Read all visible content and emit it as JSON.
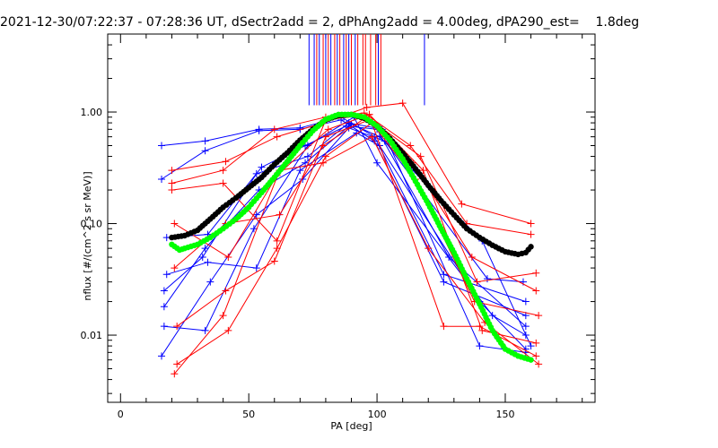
{
  "chart_data": {
    "type": "scatter",
    "title": "2021-12-30/07:22:37 - 07:28:36 UT, dSectr2add = 2, dPhAng2add = 4.00deg, dPA290_est=    1.8deg",
    "xlabel": "PA [deg]",
    "ylabel": "nflux [#/(cm^2 s sr MeV)]",
    "xlim": [
      -5,
      185
    ],
    "ylim": [
      0.0025,
      5.0
    ],
    "y_scale": "log",
    "x_ticks": [
      0,
      50,
      100,
      150
    ],
    "x_tick_labels": [
      "0",
      "50",
      "100",
      "150"
    ],
    "y_ticks": [
      0.01,
      0.1,
      1.0
    ],
    "y_tick_labels": [
      "0.01",
      "0.10",
      "1.00"
    ],
    "grid": false,
    "colors": {
      "axes": "#000000",
      "blue_sectors": "#0000ff",
      "red_sectors": "#ff0000",
      "fit_black": "#000000",
      "fit_green": "#00ff00"
    },
    "vertical_markers": {
      "blue_x": [
        73.5,
        75.5,
        77.5,
        80,
        82,
        84.5,
        87,
        89,
        91.5,
        100.5,
        118.5
      ],
      "red_x": [
        76.5,
        79,
        81,
        83.5,
        85.5,
        88,
        90,
        92.5,
        94.5,
        95.5,
        97.5,
        99.5,
        101.5
      ]
    },
    "series": [
      {
        "color": "blue",
        "x": [
          16,
          33,
          54,
          70,
          86,
          99,
          126,
          158
        ],
        "y": [
          0.5,
          0.55,
          0.7,
          0.72,
          0.9,
          0.6,
          0.035,
          0.02
        ]
      },
      {
        "color": "blue",
        "x": [
          16,
          33,
          54,
          70,
          86,
          99,
          126,
          158
        ],
        "y": [
          0.25,
          0.45,
          0.68,
          0.7,
          0.85,
          0.55,
          0.03,
          0.015
        ]
      },
      {
        "color": "blue",
        "x": [
          18,
          34,
          55,
          72,
          88,
          100,
          128,
          158
        ],
        "y": [
          0.075,
          0.08,
          0.32,
          0.5,
          0.75,
          0.7,
          0.05,
          0.012
        ]
      },
      {
        "color": "blue",
        "x": [
          17,
          32,
          53,
          73,
          89,
          102,
          140,
          158
        ],
        "y": [
          0.025,
          0.05,
          0.28,
          0.4,
          0.8,
          0.7,
          0.008,
          0.007
        ]
      },
      {
        "color": "blue",
        "x": [
          17,
          33,
          54,
          72,
          90,
          101,
          141,
          160
        ],
        "y": [
          0.018,
          0.06,
          0.2,
          0.35,
          0.78,
          0.6,
          0.07,
          0.008
        ]
      },
      {
        "color": "blue",
        "x": [
          16,
          35,
          53,
          71,
          89,
          103,
          143,
          157
        ],
        "y": [
          0.0065,
          0.03,
          0.12,
          0.25,
          0.72,
          0.55,
          0.032,
          0.03
        ]
      },
      {
        "color": "blue",
        "x": [
          17,
          33,
          52,
          73,
          91,
          100,
          145,
          158
        ],
        "y": [
          0.012,
          0.011,
          0.09,
          0.5,
          0.9,
          0.35,
          0.015,
          0.01
        ]
      },
      {
        "color": "blue",
        "x": [
          18,
          34,
          53,
          70,
          92,
          101,
          140,
          158
        ],
        "y": [
          0.035,
          0.045,
          0.04,
          0.3,
          0.65,
          0.5,
          0.02,
          0.0075
        ]
      },
      {
        "color": "red",
        "x": [
          20,
          41,
          61,
          79,
          96,
          110,
          133,
          160
        ],
        "y": [
          0.3,
          0.36,
          0.6,
          0.8,
          1.1,
          1.2,
          0.15,
          0.1
        ]
      },
      {
        "color": "red",
        "x": [
          20,
          40,
          60,
          80,
          95,
          113,
          135,
          160
        ],
        "y": [
          0.23,
          0.3,
          0.7,
          0.9,
          0.98,
          0.5,
          0.1,
          0.08
        ]
      },
      {
        "color": "red",
        "x": [
          21,
          42,
          61,
          81,
          97,
          114,
          137,
          162
        ],
        "y": [
          0.1,
          0.05,
          0.27,
          0.7,
          0.95,
          0.35,
          0.05,
          0.025
        ]
      },
      {
        "color": "red",
        "x": [
          21,
          41,
          62,
          79,
          96,
          117,
          139,
          162
        ],
        "y": [
          0.04,
          0.1,
          0.12,
          0.5,
          0.9,
          0.4,
          0.03,
          0.036
        ]
      },
      {
        "color": "red",
        "x": [
          22,
          41,
          60,
          80,
          97,
          115,
          138,
          163
        ],
        "y": [
          0.012,
          0.025,
          0.046,
          0.6,
          0.85,
          0.25,
          0.02,
          0.015
        ]
      },
      {
        "color": "red",
        "x": [
          22,
          42,
          61,
          80,
          98,
          126,
          140,
          162
        ],
        "y": [
          0.0055,
          0.011,
          0.06,
          0.4,
          0.8,
          0.012,
          0.012,
          0.0065
        ]
      },
      {
        "color": "red",
        "x": [
          21,
          40,
          62,
          79,
          98,
          120,
          142,
          163
        ],
        "y": [
          0.0045,
          0.015,
          0.3,
          0.35,
          0.6,
          0.06,
          0.013,
          0.0055
        ]
      },
      {
        "color": "red",
        "x": [
          20,
          40,
          61,
          80,
          97,
          118,
          141,
          162
        ],
        "y": [
          0.2,
          0.23,
          0.07,
          0.85,
          0.95,
          0.3,
          0.011,
          0.0085
        ]
      }
    ],
    "fits": [
      {
        "color": "black",
        "x": [
          20,
          25,
          30,
          35,
          40,
          45,
          50,
          55,
          60,
          65,
          70,
          75,
          80,
          85,
          90,
          95,
          100,
          105,
          110,
          115,
          120,
          125,
          130,
          135,
          140,
          145,
          150,
          155,
          158,
          160
        ],
        "y": [
          0.075,
          0.078,
          0.087,
          0.11,
          0.14,
          0.17,
          0.21,
          0.26,
          0.34,
          0.43,
          0.56,
          0.7,
          0.85,
          0.93,
          0.95,
          0.88,
          0.75,
          0.58,
          0.43,
          0.31,
          0.22,
          0.16,
          0.12,
          0.09,
          0.075,
          0.064,
          0.056,
          0.053,
          0.055,
          0.062
        ]
      },
      {
        "color": "green",
        "x": [
          20,
          23,
          25,
          30,
          35,
          40,
          45,
          50,
          55,
          60,
          65,
          70,
          75,
          80,
          85,
          90,
          95,
          100,
          105,
          110,
          115,
          120,
          125,
          130,
          135,
          140,
          145,
          150,
          155,
          160
        ],
        "y": [
          0.065,
          0.058,
          0.06,
          0.065,
          0.075,
          0.09,
          0.11,
          0.14,
          0.19,
          0.26,
          0.36,
          0.5,
          0.68,
          0.86,
          0.95,
          0.95,
          0.9,
          0.75,
          0.56,
          0.38,
          0.24,
          0.15,
          0.09,
          0.055,
          0.032,
          0.019,
          0.011,
          0.0075,
          0.0065,
          0.006
        ]
      }
    ]
  }
}
